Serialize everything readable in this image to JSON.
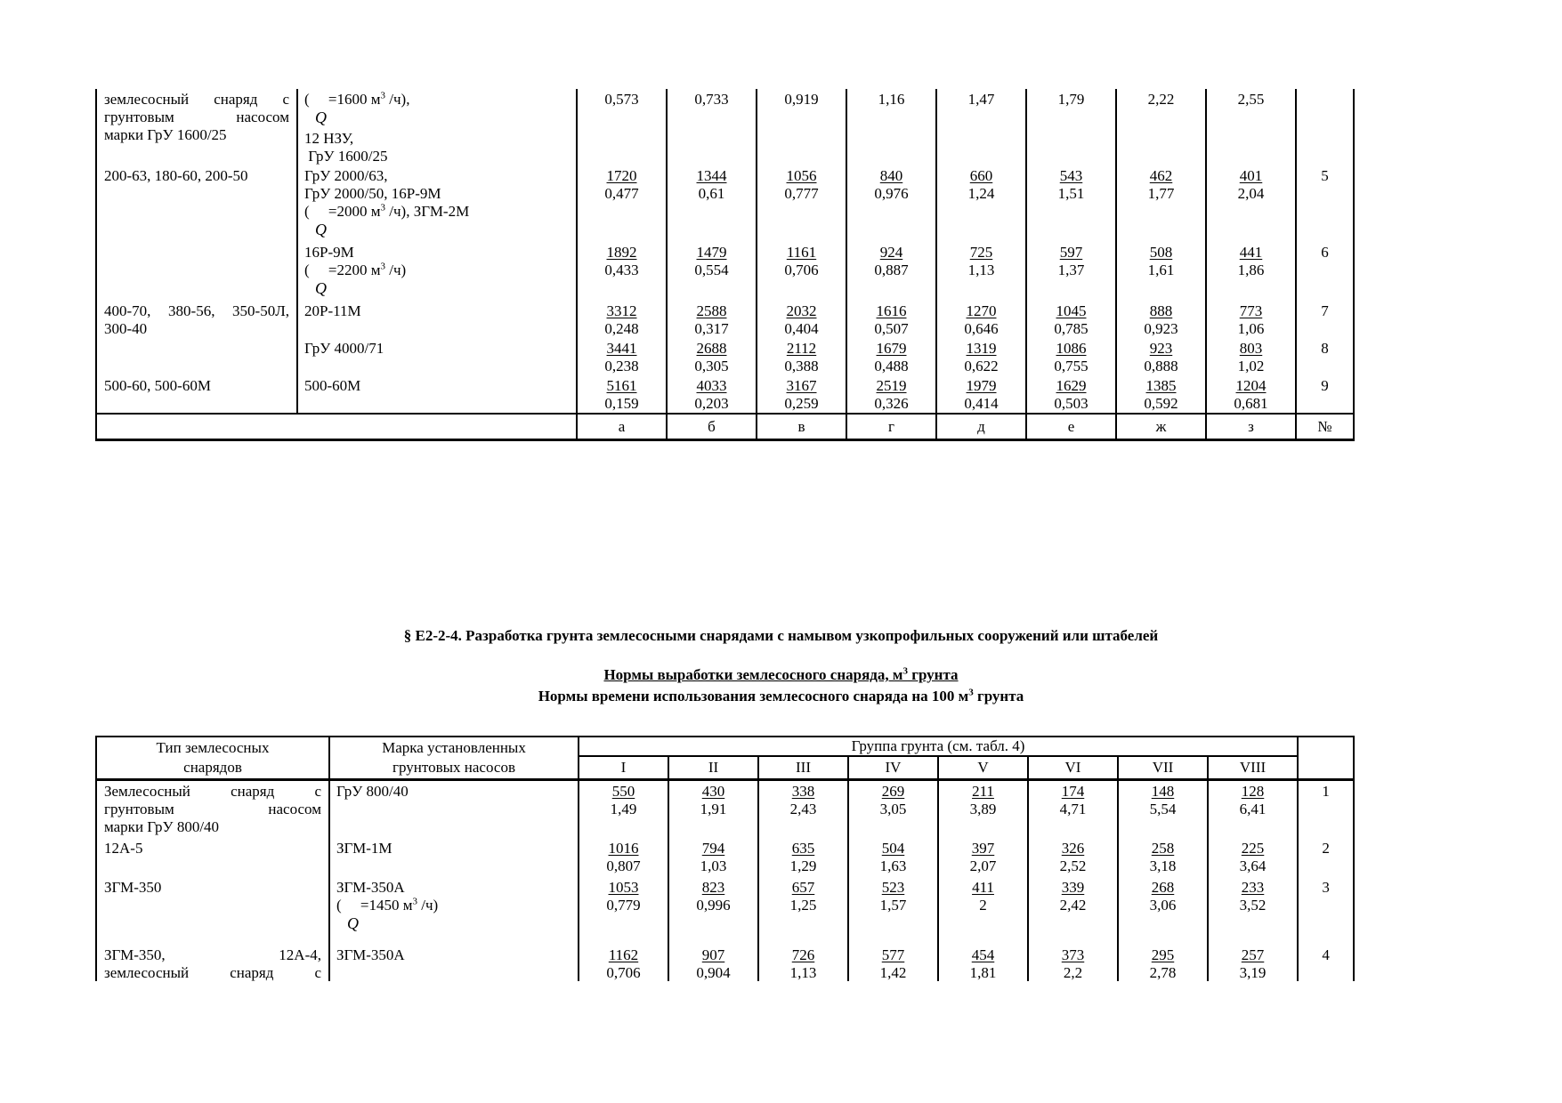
{
  "colors": {
    "background": "#ffffff",
    "text": "#000000",
    "border": "#000000"
  },
  "section": {
    "title": "§ Е2-2-4. Разработка грунта землесосными снарядами с намывом узкопрофильных сооружений или штабелей",
    "subtitle_underlined": "Нормы выработки землесосного снаряда, м³ грунта",
    "subtitle2": "Нормы времени использования землесосного снаряда на 100 м³ грунта"
  },
  "table1": {
    "rows": [
      {
        "type_lines": [
          "землесосный снаряд с",
          "грунтовым насосом",
          "марки ГрУ 1600/25"
        ],
        "pump_lines": [
          "(     =1600 м³ /ч),",
          "Q",
          "12 НЗУ,",
          " ГрУ 1600/25"
        ],
        "values": [
          [
            "",
            "0,573"
          ],
          [
            "",
            "0,733"
          ],
          [
            "",
            "0,919"
          ],
          [
            "",
            "1,16"
          ],
          [
            "",
            "1,47"
          ],
          [
            "",
            "1,79"
          ],
          [
            "",
            "2,22"
          ],
          [
            "",
            "2,55"
          ]
        ],
        "num": ""
      },
      {
        "type_lines": [
          "200-63, 180-60, 200-50"
        ],
        "pump_lines": [
          "ГрУ 2000/63,",
          "ГрУ 2000/50, 16Р-9М",
          "(     =2000 м³ /ч), ЗГМ-2М",
          "Q"
        ],
        "values": [
          [
            "1720",
            "0,477"
          ],
          [
            "1344",
            "0,61"
          ],
          [
            "1056",
            "0,777"
          ],
          [
            "840",
            "0,976"
          ],
          [
            "660",
            "1,24"
          ],
          [
            "543",
            "1,51"
          ],
          [
            "462",
            "1,77"
          ],
          [
            "401",
            "2,04"
          ]
        ],
        "num": "5"
      },
      {
        "type_lines": [],
        "pump_lines": [
          "16Р-9М",
          "(     =2200 м³ /ч)",
          "Q"
        ],
        "values": [
          [
            "1892",
            "0,433"
          ],
          [
            "1479",
            "0,554"
          ],
          [
            "1161",
            "0,706"
          ],
          [
            "924",
            "0,887"
          ],
          [
            "725",
            "1,13"
          ],
          [
            "597",
            "1,37"
          ],
          [
            "508",
            "1,61"
          ],
          [
            "441",
            "1,86"
          ]
        ],
        "num": "6"
      },
      {
        "type_lines": [
          "400-70, 380-56, 350-50Л,",
          "300-40"
        ],
        "pump_lines": [
          "20Р-11М"
        ],
        "values": [
          [
            "3312",
            "0,248"
          ],
          [
            "2588",
            "0,317"
          ],
          [
            "2032",
            "0,404"
          ],
          [
            "1616",
            "0,507"
          ],
          [
            "1270",
            "0,646"
          ],
          [
            "1045",
            "0,785"
          ],
          [
            "888",
            "0,923"
          ],
          [
            "773",
            "1,06"
          ]
        ],
        "num": "7"
      },
      {
        "type_lines": [],
        "pump_lines": [
          "ГрУ 4000/71"
        ],
        "values": [
          [
            "3441",
            "0,238"
          ],
          [
            "2688",
            "0,305"
          ],
          [
            "2112",
            "0,388"
          ],
          [
            "1679",
            "0,488"
          ],
          [
            "1319",
            "0,622"
          ],
          [
            "1086",
            "0,755"
          ],
          [
            "923",
            "0,888"
          ],
          [
            "803",
            "1,02"
          ]
        ],
        "num": "8"
      },
      {
        "type_lines": [
          "500-60, 500-60М"
        ],
        "pump_lines": [
          "500-60М"
        ],
        "values": [
          [
            "5161",
            "0,159"
          ],
          [
            "4033",
            "0,203"
          ],
          [
            "3167",
            "0,259"
          ],
          [
            "2519",
            "0,326"
          ],
          [
            "1979",
            "0,414"
          ],
          [
            "1629",
            "0,503"
          ],
          [
            "1385",
            "0,592"
          ],
          [
            "1204",
            "0,681"
          ]
        ],
        "num": "9"
      }
    ],
    "footer_letters": [
      "а",
      "б",
      "в",
      "г",
      "д",
      "е",
      "ж",
      "з",
      "№"
    ]
  },
  "table2": {
    "header": {
      "type_line1": "Тип землесосных",
      "type_line2": "снарядов",
      "pump_line1": "Марка установленных",
      "pump_line2": "грунтовых насосов",
      "group_label": "Группа грунта (см. табл. 4)",
      "group_columns": [
        "I",
        "II",
        "III",
        "IV",
        "V",
        "VI",
        "VII",
        "VIII"
      ]
    },
    "rows": [
      {
        "type_lines": [
          "Землесосный снаряд с",
          "грунтовым насосом",
          "марки ГрУ 800/40"
        ],
        "pump_lines": [
          "ГрУ 800/40"
        ],
        "values": [
          [
            "550",
            "1,49"
          ],
          [
            "430",
            "1,91"
          ],
          [
            "338",
            "2,43"
          ],
          [
            "269",
            "3,05"
          ],
          [
            "211",
            "3,89"
          ],
          [
            "174",
            "4,71"
          ],
          [
            "148",
            "5,54"
          ],
          [
            "128",
            "6,41"
          ]
        ],
        "num": "1"
      },
      {
        "type_lines": [
          "12А-5"
        ],
        "pump_lines": [
          "ЗГМ-1М"
        ],
        "values": [
          [
            "1016",
            "0,807"
          ],
          [
            "794",
            "1,03"
          ],
          [
            "635",
            "1,29"
          ],
          [
            "504",
            "1,63"
          ],
          [
            "397",
            "2,07"
          ],
          [
            "326",
            "2,52"
          ],
          [
            "258",
            "3,18"
          ],
          [
            "225",
            "3,64"
          ]
        ],
        "num": "2"
      },
      {
        "type_lines": [
          "ЗГМ-350"
        ],
        "pump_lines": [
          "ЗГМ-350А",
          "(     =1450 м³ /ч)",
          "Q"
        ],
        "values": [
          [
            "1053",
            "0,779"
          ],
          [
            "823",
            "0,996"
          ],
          [
            "657",
            "1,25"
          ],
          [
            "523",
            "1,57"
          ],
          [
            "411",
            "2"
          ],
          [
            "339",
            "2,42"
          ],
          [
            "268",
            "3,06"
          ],
          [
            "233",
            "3,52"
          ]
        ],
        "num": "3"
      },
      {
        "type_lines": [
          "ЗГМ-350, 12А-4,",
          "землесосный снаряд с"
        ],
        "justify_last": true,
        "pump_lines": [
          "ЗГМ-350А"
        ],
        "values": [
          [
            "1162",
            "0,706"
          ],
          [
            "907",
            "0,904"
          ],
          [
            "726",
            "1,13"
          ],
          [
            "577",
            "1,42"
          ],
          [
            "454",
            "1,81"
          ],
          [
            "373",
            "2,2"
          ],
          [
            "295",
            "2,78"
          ],
          [
            "257",
            "3,19"
          ]
        ],
        "num": "4"
      }
    ]
  }
}
